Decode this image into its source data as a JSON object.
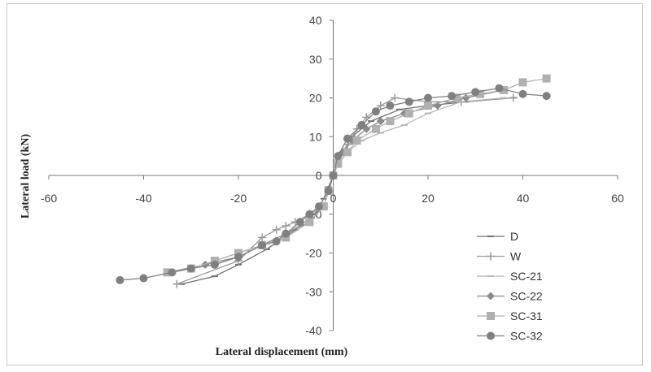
{
  "chart_data": {
    "type": "line",
    "xlabel": "Lateral displacement (mm)",
    "ylabel": "Lateral load (kN)",
    "xlim": [
      -60,
      60
    ],
    "ylim": [
      -40,
      40
    ],
    "xticks": [
      -60,
      -40,
      -20,
      0,
      20,
      40,
      60
    ],
    "yticks": [
      -40,
      -30,
      -20,
      -10,
      0,
      10,
      20,
      30,
      40
    ],
    "grid": false,
    "legend_position": "bottom-right",
    "series": [
      {
        "name": "D",
        "marker": "dash",
        "color": "#707070",
        "x": [
          -32,
          -25,
          -20,
          -14,
          -8,
          -4,
          -2,
          -1,
          0,
          1,
          2,
          4,
          8,
          14,
          20,
          28,
          38
        ],
        "y": [
          -28,
          -26,
          -23,
          -19,
          -14,
          -10,
          -6,
          -3,
          0,
          3,
          6,
          10,
          14,
          17,
          18,
          19,
          20
        ]
      },
      {
        "name": "W",
        "marker": "plus",
        "color": "#9a9a9a",
        "x": [
          -33,
          -20,
          -15,
          -12,
          -10,
          -8,
          -5,
          -3,
          -1,
          0,
          1,
          3,
          5,
          7,
          10,
          13,
          20,
          27,
          38
        ],
        "y": [
          -28,
          -22,
          -16,
          -14,
          -13,
          -12,
          -10,
          -8,
          -4,
          0,
          4,
          8,
          12,
          15,
          18,
          20,
          19,
          19,
          20
        ]
      },
      {
        "name": "SC-21",
        "marker": "dash",
        "color": "#b8b8b8",
        "x": [
          -25,
          -20,
          -15,
          -10,
          -6,
          -3,
          -1,
          0,
          1,
          3,
          6,
          10,
          15,
          20,
          27,
          36
        ],
        "y": [
          -22,
          -20,
          -18,
          -15,
          -12,
          -8,
          -4,
          0,
          3,
          6,
          9,
          11,
          13,
          16,
          19,
          20
        ]
      },
      {
        "name": "SC-22",
        "marker": "diamond",
        "color": "#8a8a8a",
        "x": [
          -35,
          -27,
          -20,
          -15,
          -10,
          -5,
          -2,
          -1,
          0,
          1,
          2,
          4,
          7,
          10,
          15,
          22,
          28,
          36
        ],
        "y": [
          -25,
          -23,
          -21,
          -18,
          -15,
          -12,
          -8,
          -4,
          0,
          3,
          6,
          9,
          12,
          14,
          16,
          18,
          20,
          22
        ]
      },
      {
        "name": "SC-31",
        "marker": "square",
        "color": "#b0b0b0",
        "x": [
          -35,
          -30,
          -25,
          -20,
          -15,
          -10,
          -5,
          -2,
          -1,
          0,
          1,
          3,
          5,
          9,
          12,
          16,
          20,
          26,
          31,
          36,
          40,
          45
        ],
        "y": [
          -25,
          -24,
          -22,
          -20,
          -18,
          -16,
          -12,
          -8,
          -4,
          0,
          3,
          6,
          9,
          12,
          14,
          16,
          18,
          20,
          21,
          22,
          24,
          25
        ]
      },
      {
        "name": "SC-32",
        "marker": "circle",
        "color": "#808080",
        "x": [
          -45,
          -40,
          -34,
          -30,
          -25,
          -20,
          -15,
          -12,
          -10,
          -7,
          -5,
          -3,
          -1,
          0,
          1,
          3,
          6,
          9,
          12,
          16,
          20,
          25,
          30,
          35,
          40,
          45
        ],
        "y": [
          -27,
          -26.5,
          -25,
          -24,
          -23,
          -21,
          -18,
          -17,
          -15,
          -12,
          -10,
          -8,
          -4,
          0,
          5,
          9.5,
          13,
          16.5,
          18,
          19,
          20,
          20.5,
          21.5,
          22.5,
          21,
          20.5
        ]
      }
    ]
  }
}
